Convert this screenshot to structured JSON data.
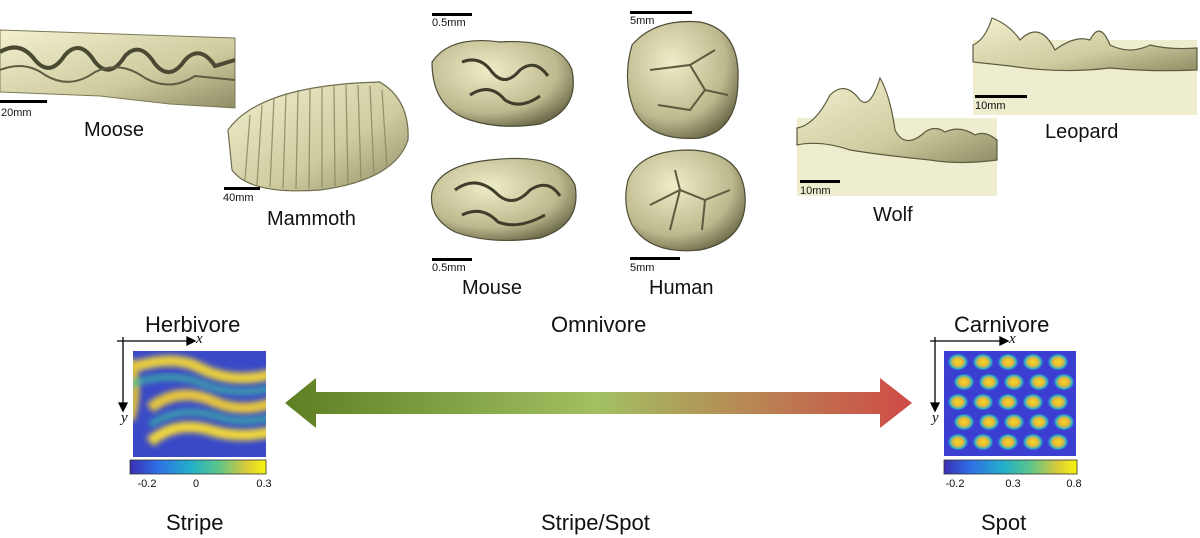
{
  "specimens": {
    "moose": {
      "name": "Moose",
      "scale": "20mm"
    },
    "mammoth": {
      "name": "Mammoth",
      "scale": "40mm"
    },
    "mouse": {
      "name": "Mouse",
      "scale_top": "0.5mm",
      "scale_bottom": "0.5mm"
    },
    "human": {
      "name": "Human",
      "scale_top": "5mm",
      "scale_bottom": "5mm"
    },
    "wolf": {
      "name": "Wolf",
      "scale": "10mm"
    },
    "leopard": {
      "name": "Leopard",
      "scale": "10mm"
    }
  },
  "categories": {
    "herbivore": "Herbivore",
    "omnivore": "Omnivore",
    "carnivore": "Carnivore"
  },
  "patterns": {
    "stripe": "Stripe",
    "mixed": "Stripe/Spot",
    "spot": "Spot"
  },
  "axes": {
    "x": "x",
    "y": "y"
  },
  "colorbars": {
    "left": {
      "ticks": [
        "-0.2",
        "0",
        "0.3"
      ]
    },
    "right": {
      "ticks": [
        "-0.2",
        "0.3",
        "0.8"
      ]
    }
  },
  "colors": {
    "tooth": "#dedcb4",
    "tooth_dark": "#6b6a4a",
    "arrow_left": "#6b8a2a",
    "arrow_mid": "#a3c060",
    "arrow_right": "#c9504a"
  }
}
